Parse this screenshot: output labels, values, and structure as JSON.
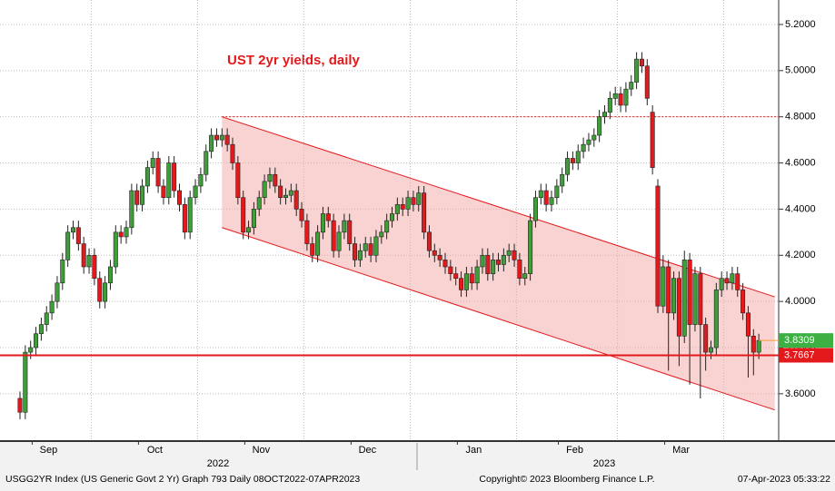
{
  "chart_data": {
    "type": "candlestick",
    "title": "UST 2yr yields, daily",
    "categories": [
      null,
      null,
      null,
      null,
      "Sep",
      null,
      null,
      null,
      null,
      null,
      null,
      null,
      null,
      null,
      null,
      null,
      null,
      null,
      null,
      null,
      null,
      null,
      null,
      null,
      "Oct",
      null,
      null,
      null,
      null,
      null,
      null,
      null,
      null,
      null,
      null,
      null,
      null,
      null,
      null,
      null,
      null,
      null,
      null,
      null,
      "Nov",
      null,
      null,
      null,
      null,
      null,
      null,
      null,
      null,
      null,
      null,
      null,
      null,
      null,
      null,
      null,
      null,
      null,
      null,
      null,
      "Dec",
      null,
      null,
      null,
      null,
      null,
      null,
      null,
      null,
      null,
      null,
      null,
      null,
      null,
      null,
      null,
      null,
      null,
      null,
      null,
      "Jan",
      null,
      null,
      null,
      null,
      null,
      null,
      null,
      null,
      null,
      null,
      null,
      null,
      null,
      null,
      null,
      null,
      null,
      null,
      "Feb",
      null,
      null,
      null,
      null,
      null,
      null,
      null,
      null,
      null,
      null,
      null,
      null,
      null,
      null,
      null,
      null,
      null,
      null,
      null,
      "Mar",
      null,
      null,
      null,
      null,
      null,
      null,
      null,
      null,
      null,
      null,
      null,
      null,
      null,
      null,
      null,
      null
    ],
    "open": [
      3.58,
      3.52,
      3.78,
      3.8,
      3.86,
      3.9,
      3.95,
      4.0,
      4.08,
      4.18,
      4.3,
      4.32,
      4.25,
      4.15,
      4.2,
      4.1,
      4.0,
      4.08,
      4.15,
      4.3,
      4.28,
      4.32,
      4.48,
      4.42,
      4.5,
      4.58,
      4.62,
      4.5,
      4.45,
      4.6,
      4.48,
      4.42,
      4.3,
      4.45,
      4.5,
      4.55,
      4.65,
      4.72,
      4.7,
      4.72,
      4.68,
      4.6,
      4.45,
      4.3,
      4.32,
      4.4,
      4.45,
      4.52,
      4.55,
      4.5,
      4.45,
      4.46,
      4.48,
      4.4,
      4.35,
      4.25,
      4.2,
      4.3,
      4.38,
      4.35,
      4.22,
      4.3,
      4.35,
      4.25,
      4.18,
      4.22,
      4.25,
      4.2,
      4.28,
      4.3,
      4.35,
      4.38,
      4.42,
      4.4,
      4.45,
      4.42,
      4.47,
      4.3,
      4.22,
      4.2,
      4.18,
      4.15,
      4.12,
      4.1,
      4.05,
      4.12,
      4.08,
      4.15,
      4.2,
      4.12,
      4.18,
      4.16,
      4.2,
      4.22,
      4.18,
      4.1,
      4.12,
      4.35,
      4.45,
      4.48,
      4.42,
      4.45,
      4.5,
      4.55,
      4.62,
      4.6,
      4.65,
      4.68,
      4.7,
      4.72,
      4.8,
      4.82,
      4.88,
      4.9,
      4.85,
      4.92,
      4.95,
      5.05,
      5.02,
      4.82,
      4.5,
      3.98,
      4.15,
      3.95,
      4.1,
      3.85,
      4.18,
      3.9,
      4.12,
      3.9,
      3.78,
      3.8,
      4.05,
      4.1,
      4.08,
      4.12,
      4.05,
      3.95,
      3.85,
      3.78
    ],
    "high": [
      3.61,
      3.81,
      3.83,
      3.89,
      3.93,
      3.98,
      4.03,
      4.11,
      4.21,
      4.33,
      4.35,
      4.35,
      4.28,
      4.23,
      4.23,
      4.13,
      4.11,
      4.18,
      4.33,
      4.33,
      4.35,
      4.51,
      4.51,
      4.53,
      4.61,
      4.65,
      4.65,
      4.53,
      4.63,
      4.63,
      4.51,
      4.45,
      4.48,
      4.53,
      4.58,
      4.68,
      4.75,
      4.75,
      4.75,
      4.75,
      4.71,
      4.63,
      4.48,
      4.35,
      4.43,
      4.48,
      4.55,
      4.58,
      4.58,
      4.53,
      4.49,
      4.51,
      4.51,
      4.43,
      4.38,
      4.28,
      4.33,
      4.41,
      4.41,
      4.38,
      4.33,
      4.38,
      4.38,
      4.28,
      4.25,
      4.28,
      4.28,
      4.31,
      4.33,
      4.38,
      4.41,
      4.45,
      4.45,
      4.48,
      4.48,
      4.5,
      4.5,
      4.33,
      4.25,
      4.23,
      4.21,
      4.18,
      4.15,
      4.13,
      4.15,
      4.15,
      4.18,
      4.23,
      4.23,
      4.21,
      4.21,
      4.23,
      4.25,
      4.25,
      4.21,
      4.15,
      4.38,
      4.48,
      4.51,
      4.51,
      4.48,
      4.53,
      4.58,
      4.65,
      4.65,
      4.68,
      4.71,
      4.73,
      4.75,
      4.83,
      4.85,
      4.91,
      4.93,
      4.93,
      4.95,
      4.98,
      5.08,
      5.08,
      5.05,
      4.85,
      4.53,
      4.2,
      4.18,
      4.13,
      4.13,
      4.22,
      4.21,
      4.15,
      4.15,
      3.93,
      3.83,
      4.08,
      4.13,
      4.13,
      4.15,
      4.15,
      4.08,
      3.98,
      3.88,
      3.86
    ],
    "low": [
      3.49,
      3.49,
      3.75,
      3.77,
      3.83,
      3.87,
      3.92,
      3.97,
      4.05,
      4.15,
      4.27,
      4.22,
      4.12,
      4.12,
      4.07,
      3.97,
      3.97,
      4.05,
      4.12,
      4.25,
      4.25,
      4.29,
      4.39,
      4.39,
      4.47,
      4.55,
      4.47,
      4.42,
      4.42,
      4.45,
      4.39,
      4.27,
      4.27,
      4.42,
      4.47,
      4.52,
      4.62,
      4.67,
      4.67,
      4.65,
      4.57,
      4.42,
      4.27,
      4.27,
      4.29,
      4.37,
      4.42,
      4.49,
      4.47,
      4.42,
      4.42,
      4.43,
      4.37,
      4.32,
      4.22,
      4.17,
      4.17,
      4.27,
      4.32,
      4.19,
      4.19,
      4.27,
      4.22,
      4.15,
      4.15,
      4.19,
      4.17,
      4.17,
      4.25,
      4.27,
      4.32,
      4.35,
      4.37,
      4.37,
      4.39,
      4.39,
      4.27,
      4.19,
      4.17,
      4.15,
      4.12,
      4.09,
      4.07,
      4.02,
      4.02,
      4.05,
      4.05,
      4.12,
      4.09,
      4.09,
      4.13,
      4.13,
      4.17,
      4.15,
      4.07,
      4.07,
      4.09,
      4.32,
      4.42,
      4.39,
      4.39,
      4.42,
      4.47,
      4.52,
      4.57,
      4.57,
      4.62,
      4.65,
      4.67,
      4.69,
      4.77,
      4.79,
      4.85,
      4.82,
      4.82,
      4.89,
      4.92,
      4.99,
      4.85,
      4.55,
      3.95,
      3.95,
      3.7,
      3.92,
      3.72,
      3.82,
      3.64,
      3.87,
      3.58,
      3.7,
      3.75,
      3.77,
      4.02,
      4.05,
      4.05,
      4.02,
      3.92,
      3.67,
      3.68,
      3.75
    ],
    "close": [
      3.52,
      3.78,
      3.8,
      3.86,
      3.9,
      3.95,
      4.0,
      4.08,
      4.18,
      4.3,
      4.32,
      4.25,
      4.15,
      4.2,
      4.1,
      4.0,
      4.08,
      4.15,
      4.3,
      4.28,
      4.32,
      4.48,
      4.42,
      4.5,
      4.58,
      4.62,
      4.5,
      4.45,
      4.6,
      4.48,
      4.42,
      4.3,
      4.45,
      4.5,
      4.55,
      4.65,
      4.72,
      4.7,
      4.72,
      4.68,
      4.6,
      4.45,
      4.3,
      4.32,
      4.4,
      4.45,
      4.52,
      4.55,
      4.5,
      4.45,
      4.46,
      4.48,
      4.4,
      4.35,
      4.25,
      4.2,
      4.3,
      4.38,
      4.35,
      4.22,
      4.3,
      4.35,
      4.25,
      4.18,
      4.22,
      4.25,
      4.2,
      4.28,
      4.3,
      4.35,
      4.38,
      4.42,
      4.4,
      4.45,
      4.42,
      4.47,
      4.3,
      4.22,
      4.2,
      4.18,
      4.15,
      4.12,
      4.1,
      4.05,
      4.12,
      4.08,
      4.15,
      4.2,
      4.12,
      4.18,
      4.16,
      4.2,
      4.22,
      4.18,
      4.1,
      4.12,
      4.35,
      4.45,
      4.48,
      4.42,
      4.45,
      4.5,
      4.55,
      4.62,
      4.6,
      4.65,
      4.68,
      4.7,
      4.72,
      4.8,
      4.82,
      4.88,
      4.9,
      4.85,
      4.92,
      4.95,
      5.05,
      5.02,
      4.88,
      4.58,
      3.98,
      4.15,
      3.95,
      4.1,
      3.85,
      4.18,
      3.9,
      4.12,
      3.9,
      3.78,
      3.8,
      4.05,
      4.1,
      4.08,
      4.12,
      4.05,
      3.95,
      3.85,
      3.78,
      3.8309
    ],
    "up_color": "#3f9e3a",
    "down_color": "#e3191c",
    "ylim": [
      3.395,
      5.306
    ],
    "yticks": [
      {
        "value": 3.6,
        "label": "3.6000"
      },
      {
        "value": 3.8,
        "label": "3.8000"
      },
      {
        "value": 4.0,
        "label": "4.0000"
      },
      {
        "value": 4.2,
        "label": "4.2000"
      },
      {
        "value": 4.4,
        "label": "4.4000"
      },
      {
        "value": 4.6,
        "label": "4.6000"
      },
      {
        "value": 4.8,
        "label": "4.8000"
      },
      {
        "value": 5.0,
        "label": "5.0000"
      },
      {
        "value": 5.2,
        "label": "5.2000"
      }
    ],
    "grid": true,
    "channel": {
      "x": [
        38,
        142
      ],
      "upper": [
        4.8,
        4.02
      ],
      "lower": [
        4.32,
        3.53
      ],
      "color": "#f4a6a6"
    },
    "resistance": 4.8,
    "level": 3.7667,
    "last_price": 3.8309,
    "year_labels": [
      "2022",
      "2023"
    ],
    "footer": {
      "left": "USGG2YR Index (US Generic Govt 2 Yr) Graph 793  Daily 08OCT2022-07APR2023",
      "center": "Copyright© 2023 Bloomberg Finance L.P.",
      "right": "07-Apr-2023 05:33:22"
    }
  }
}
